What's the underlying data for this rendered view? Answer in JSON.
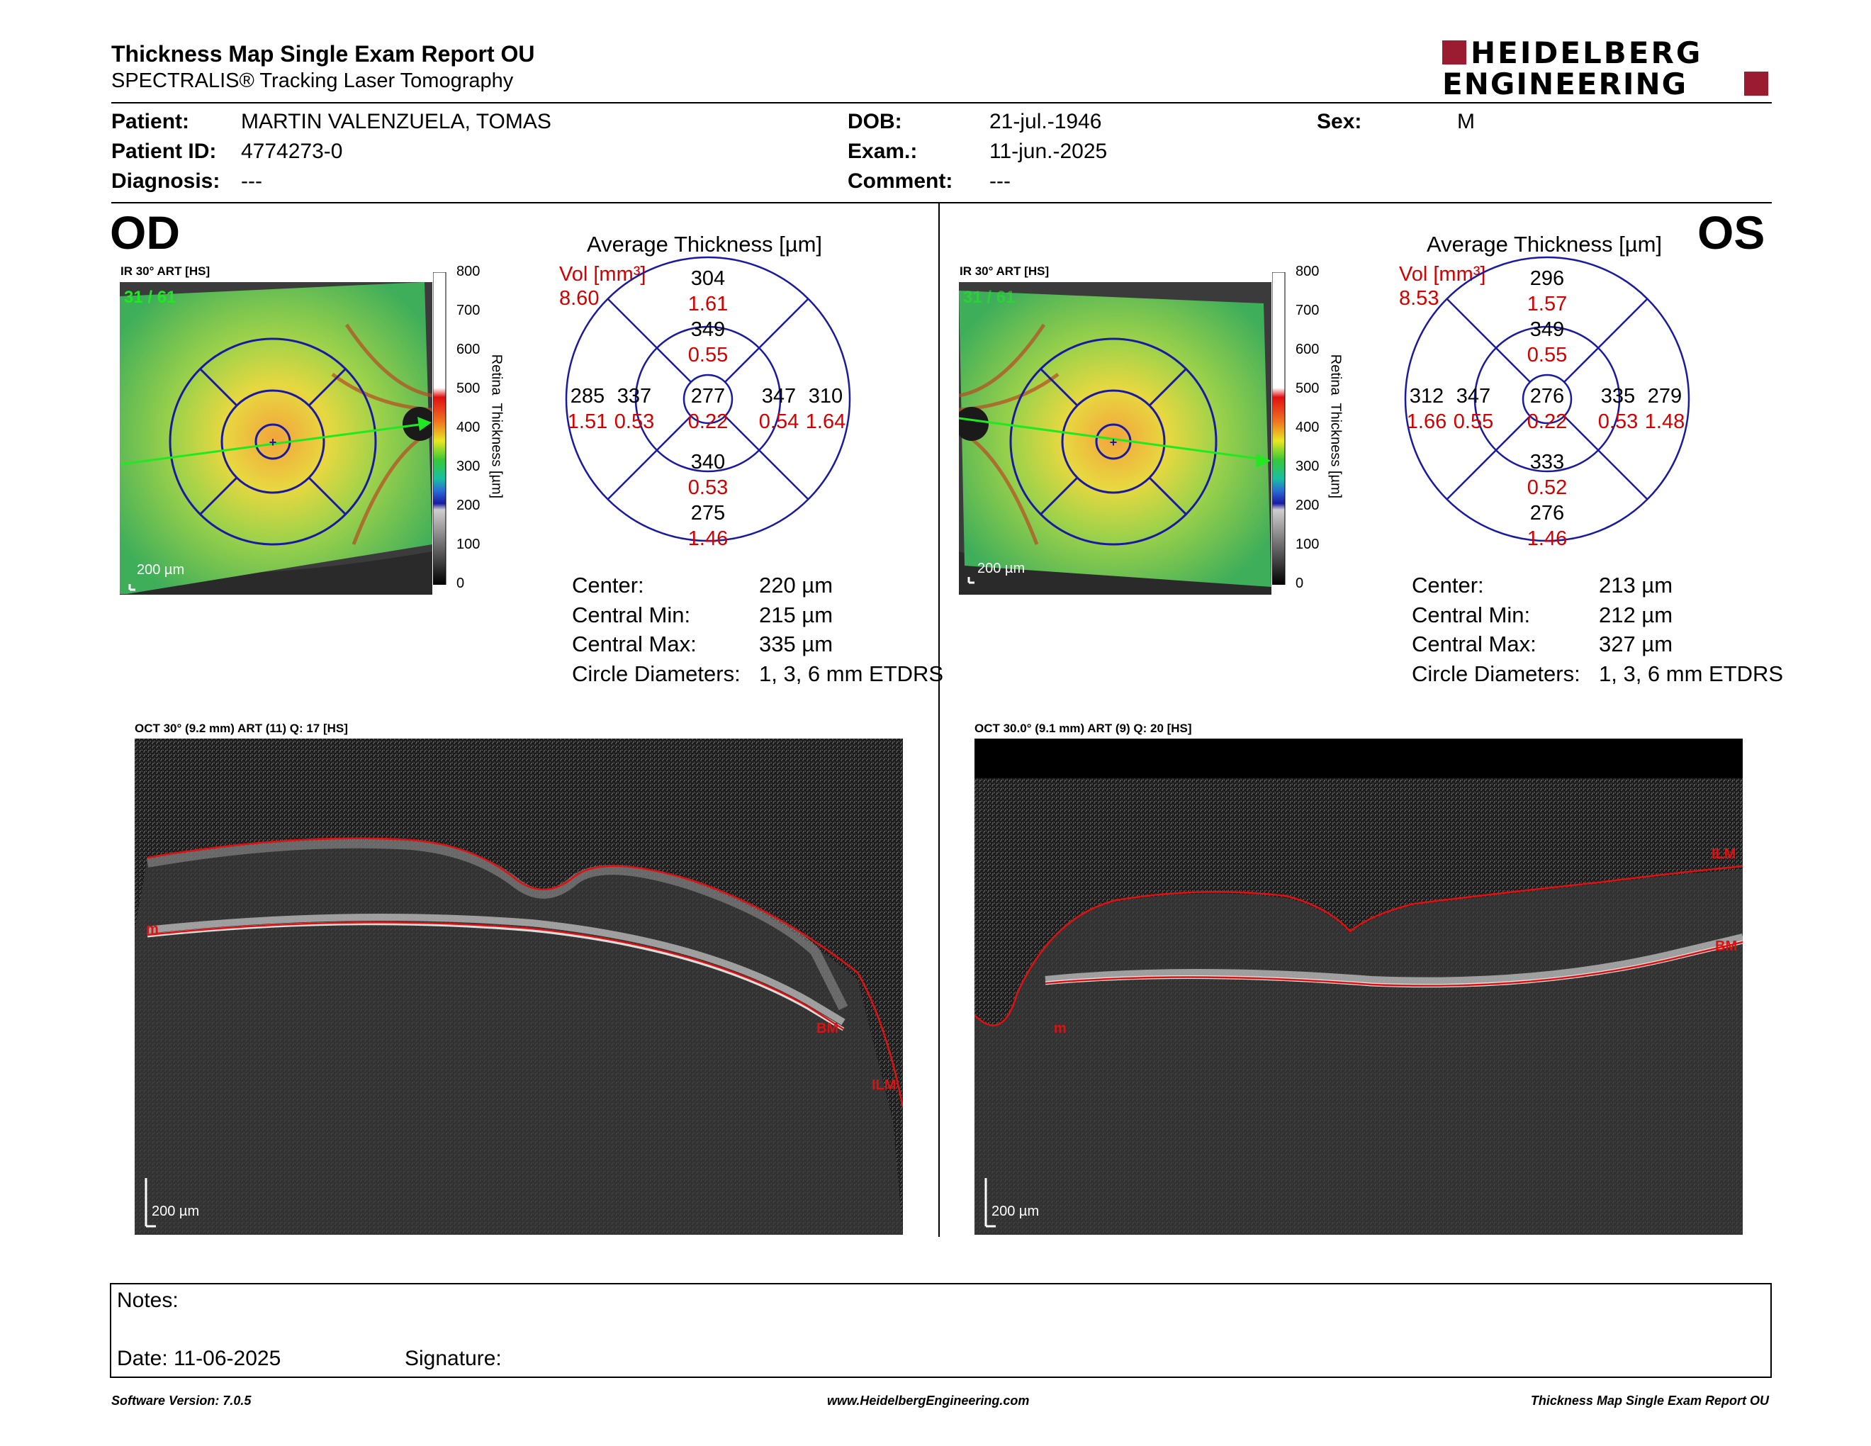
{
  "header": {
    "title": "Thickness Map Single Exam Report OU",
    "subtitle": "SPECTRALIS® Tracking Laser Tomography",
    "logo_line1": "HEIDELBERG",
    "logo_line2": "ENGINEERING",
    "brand_color": "#9b1b30"
  },
  "patient": {
    "patient_label": "Patient:",
    "patient_value": "MARTIN VALENZUELA, TOMAS",
    "id_label": "Patient ID:",
    "id_value": "4774273-0",
    "diagnosis_label": "Diagnosis:",
    "diagnosis_value": "---",
    "dob_label": "DOB:",
    "dob_value": "21-jul.-1946",
    "exam_label": "Exam.:",
    "exam_value": "11-jun.-2025",
    "comment_label": "Comment:",
    "comment_value": "---",
    "sex_label": "Sex:",
    "sex_value": "M"
  },
  "od": {
    "eye": "OD",
    "ir_label": "IR 30° ART [HS]",
    "frame_label": "31 / 61",
    "scale_label": "200 µm",
    "colorbar_title": "Retina  Thickness [µm]",
    "colorbar_ticks": [
      "800",
      "700",
      "600",
      "500",
      "400",
      "300",
      "200",
      "100",
      "0"
    ],
    "chart_title": "Average Thickness [µm]",
    "vol_label": "Vol [mm³]",
    "vol_value": "8.60",
    "grid": {
      "outer_top": {
        "t": "304",
        "v": "1.61"
      },
      "inner_top": {
        "t": "349",
        "v": "0.55"
      },
      "outer_left": {
        "t": "285",
        "v": "1.51"
      },
      "inner_left": {
        "t": "337",
        "v": "0.53"
      },
      "center": {
        "t": "277",
        "v": "0.22"
      },
      "inner_right": {
        "t": "347",
        "v": "0.54"
      },
      "outer_right": {
        "t": "310",
        "v": "1.64"
      },
      "inner_bottom": {
        "t": "340",
        "v": "0.53"
      },
      "outer_bottom": {
        "t": "275",
        "v": "1.46"
      }
    },
    "stats": [
      {
        "label": "Center:",
        "value": "220 µm"
      },
      {
        "label": "Central Min:",
        "value": "215 µm"
      },
      {
        "label": "Central Max:",
        "value": "335 µm"
      },
      {
        "label": "Circle Diameters:",
        "value": "1, 3, 6 mm ETDRS"
      }
    ],
    "oct_label": "OCT 30° (9.2 mm) ART (11) Q: 17 [HS]",
    "oct_scale": "200 µm",
    "oct_markers": [
      "m",
      "BM",
      "ILM"
    ]
  },
  "os": {
    "eye": "OS",
    "ir_label": "IR 30° ART [HS]",
    "frame_label": "31 / 61",
    "scale_label": "200 µm",
    "colorbar_title": "Retina  Thickness [µm]",
    "colorbar_ticks": [
      "800",
      "700",
      "600",
      "500",
      "400",
      "300",
      "200",
      "100",
      "0"
    ],
    "chart_title": "Average Thickness [µm]",
    "vol_label": "Vol [mm³]",
    "vol_value": "8.53",
    "grid": {
      "outer_top": {
        "t": "296",
        "v": "1.57"
      },
      "inner_top": {
        "t": "349",
        "v": "0.55"
      },
      "outer_left": {
        "t": "312",
        "v": "1.66"
      },
      "inner_left": {
        "t": "347",
        "v": "0.55"
      },
      "center": {
        "t": "276",
        "v": "0.22"
      },
      "inner_right": {
        "t": "335",
        "v": "0.53"
      },
      "outer_right": {
        "t": "279",
        "v": "1.48"
      },
      "inner_bottom": {
        "t": "333",
        "v": "0.52"
      },
      "outer_bottom": {
        "t": "276",
        "v": "1.46"
      }
    },
    "stats": [
      {
        "label": "Center:",
        "value": "213 µm"
      },
      {
        "label": "Central Min:",
        "value": "212 µm"
      },
      {
        "label": "Central Max:",
        "value": "327 µm"
      },
      {
        "label": "Circle Diameters:",
        "value": "1, 3, 6 mm ETDRS"
      }
    ],
    "oct_label": "OCT 30.0° (9.1 mm) ART (9) Q: 20 [HS]",
    "oct_scale": "200 µm",
    "oct_markers": [
      "ILM",
      "BM",
      "m"
    ]
  },
  "notes": {
    "notes_label": "Notes:",
    "date_label": "Date: 11-06-2025",
    "signature_label": "Signature:"
  },
  "footer": {
    "left": "Software Version: 7.0.5",
    "center": "www.HeidelbergEngineering.com",
    "right": "Thickness Map Single Exam Report OU"
  }
}
